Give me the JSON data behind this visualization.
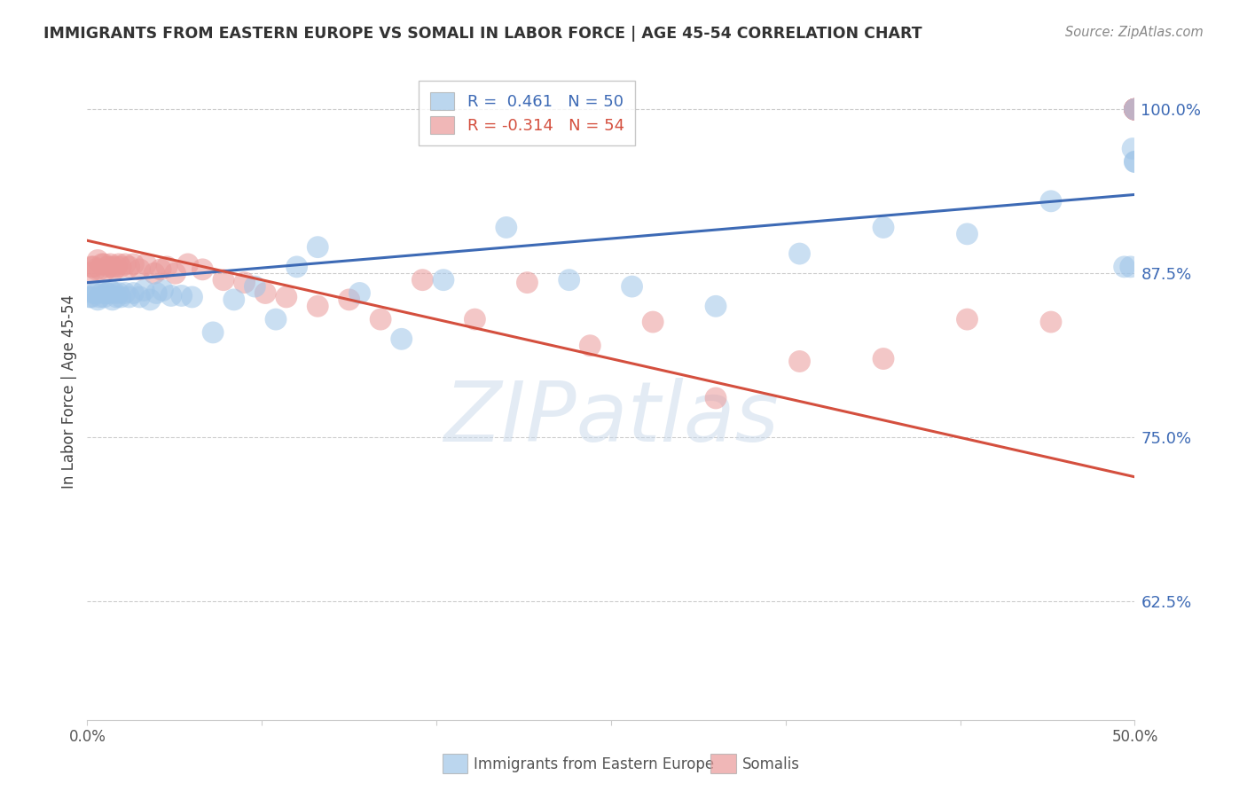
{
  "title": "IMMIGRANTS FROM EASTERN EUROPE VS SOMALI IN LABOR FORCE | AGE 45-54 CORRELATION CHART",
  "source": "Source: ZipAtlas.com",
  "ylabel": "In Labor Force | Age 45-54",
  "ytick_labels": [
    "100.0%",
    "87.5%",
    "75.0%",
    "62.5%"
  ],
  "ytick_values": [
    1.0,
    0.875,
    0.75,
    0.625
  ],
  "xlim": [
    0.0,
    0.5
  ],
  "ylim": [
    0.535,
    1.035
  ],
  "legend_blue": "R =  0.461   N = 50",
  "legend_pink": "R = -0.314   N = 54",
  "blue_scatter_color": "#9fc5e8",
  "pink_scatter_color": "#ea9999",
  "blue_line_color": "#3d6ab5",
  "pink_line_color": "#d44f3e",
  "blue_text_color": "#3d6ab5",
  "pink_text_color": "#d44f3e",
  "watermark": "ZIPatlas",
  "watermark_color": "#c8d8ea",
  "grid_color": "#cccccc",
  "title_color": "#333333",
  "source_color": "#888888",
  "blue_x": [
    0.001,
    0.002,
    0.003,
    0.004,
    0.005,
    0.006,
    0.007,
    0.008,
    0.009,
    0.01,
    0.011,
    0.012,
    0.013,
    0.014,
    0.015,
    0.016,
    0.018,
    0.02,
    0.022,
    0.025,
    0.027,
    0.03,
    0.033,
    0.036,
    0.04,
    0.045,
    0.05,
    0.06,
    0.07,
    0.08,
    0.09,
    0.1,
    0.11,
    0.13,
    0.15,
    0.17,
    0.2,
    0.23,
    0.26,
    0.3,
    0.34,
    0.38,
    0.42,
    0.46,
    0.495,
    0.498,
    0.499,
    0.5,
    0.5,
    0.5
  ],
  "blue_y": [
    0.857,
    0.857,
    0.86,
    0.86,
    0.855,
    0.857,
    0.86,
    0.857,
    0.86,
    0.86,
    0.862,
    0.855,
    0.86,
    0.857,
    0.86,
    0.857,
    0.86,
    0.857,
    0.86,
    0.857,
    0.862,
    0.855,
    0.86,
    0.862,
    0.858,
    0.858,
    0.857,
    0.83,
    0.855,
    0.865,
    0.84,
    0.88,
    0.895,
    0.86,
    0.825,
    0.87,
    0.91,
    0.87,
    0.865,
    0.85,
    0.89,
    0.91,
    0.905,
    0.93,
    0.88,
    0.88,
    0.97,
    0.96,
    0.96,
    1.0
  ],
  "pink_x": [
    0.001,
    0.002,
    0.003,
    0.004,
    0.005,
    0.006,
    0.007,
    0.008,
    0.009,
    0.01,
    0.011,
    0.012,
    0.013,
    0.014,
    0.015,
    0.016,
    0.018,
    0.02,
    0.022,
    0.025,
    0.028,
    0.032,
    0.035,
    0.038,
    0.042,
    0.048,
    0.055,
    0.065,
    0.075,
    0.085,
    0.095,
    0.11,
    0.125,
    0.14,
    0.16,
    0.185,
    0.21,
    0.24,
    0.27,
    0.3,
    0.34,
    0.38,
    0.42,
    0.46,
    0.5,
    0.5,
    0.5,
    0.5,
    0.5,
    0.5,
    0.5,
    0.5,
    0.5,
    0.5
  ],
  "pink_y": [
    0.875,
    0.88,
    0.88,
    0.878,
    0.885,
    0.878,
    0.882,
    0.882,
    0.878,
    0.88,
    0.882,
    0.88,
    0.878,
    0.88,
    0.882,
    0.88,
    0.882,
    0.88,
    0.882,
    0.878,
    0.882,
    0.875,
    0.878,
    0.88,
    0.875,
    0.882,
    0.878,
    0.87,
    0.868,
    0.86,
    0.857,
    0.85,
    0.855,
    0.84,
    0.87,
    0.84,
    0.868,
    0.82,
    0.838,
    0.78,
    0.808,
    0.81,
    0.84,
    0.838,
    1.0,
    1.0,
    1.0,
    1.0,
    1.0,
    1.0,
    1.0,
    1.0,
    1.0,
    1.0
  ]
}
